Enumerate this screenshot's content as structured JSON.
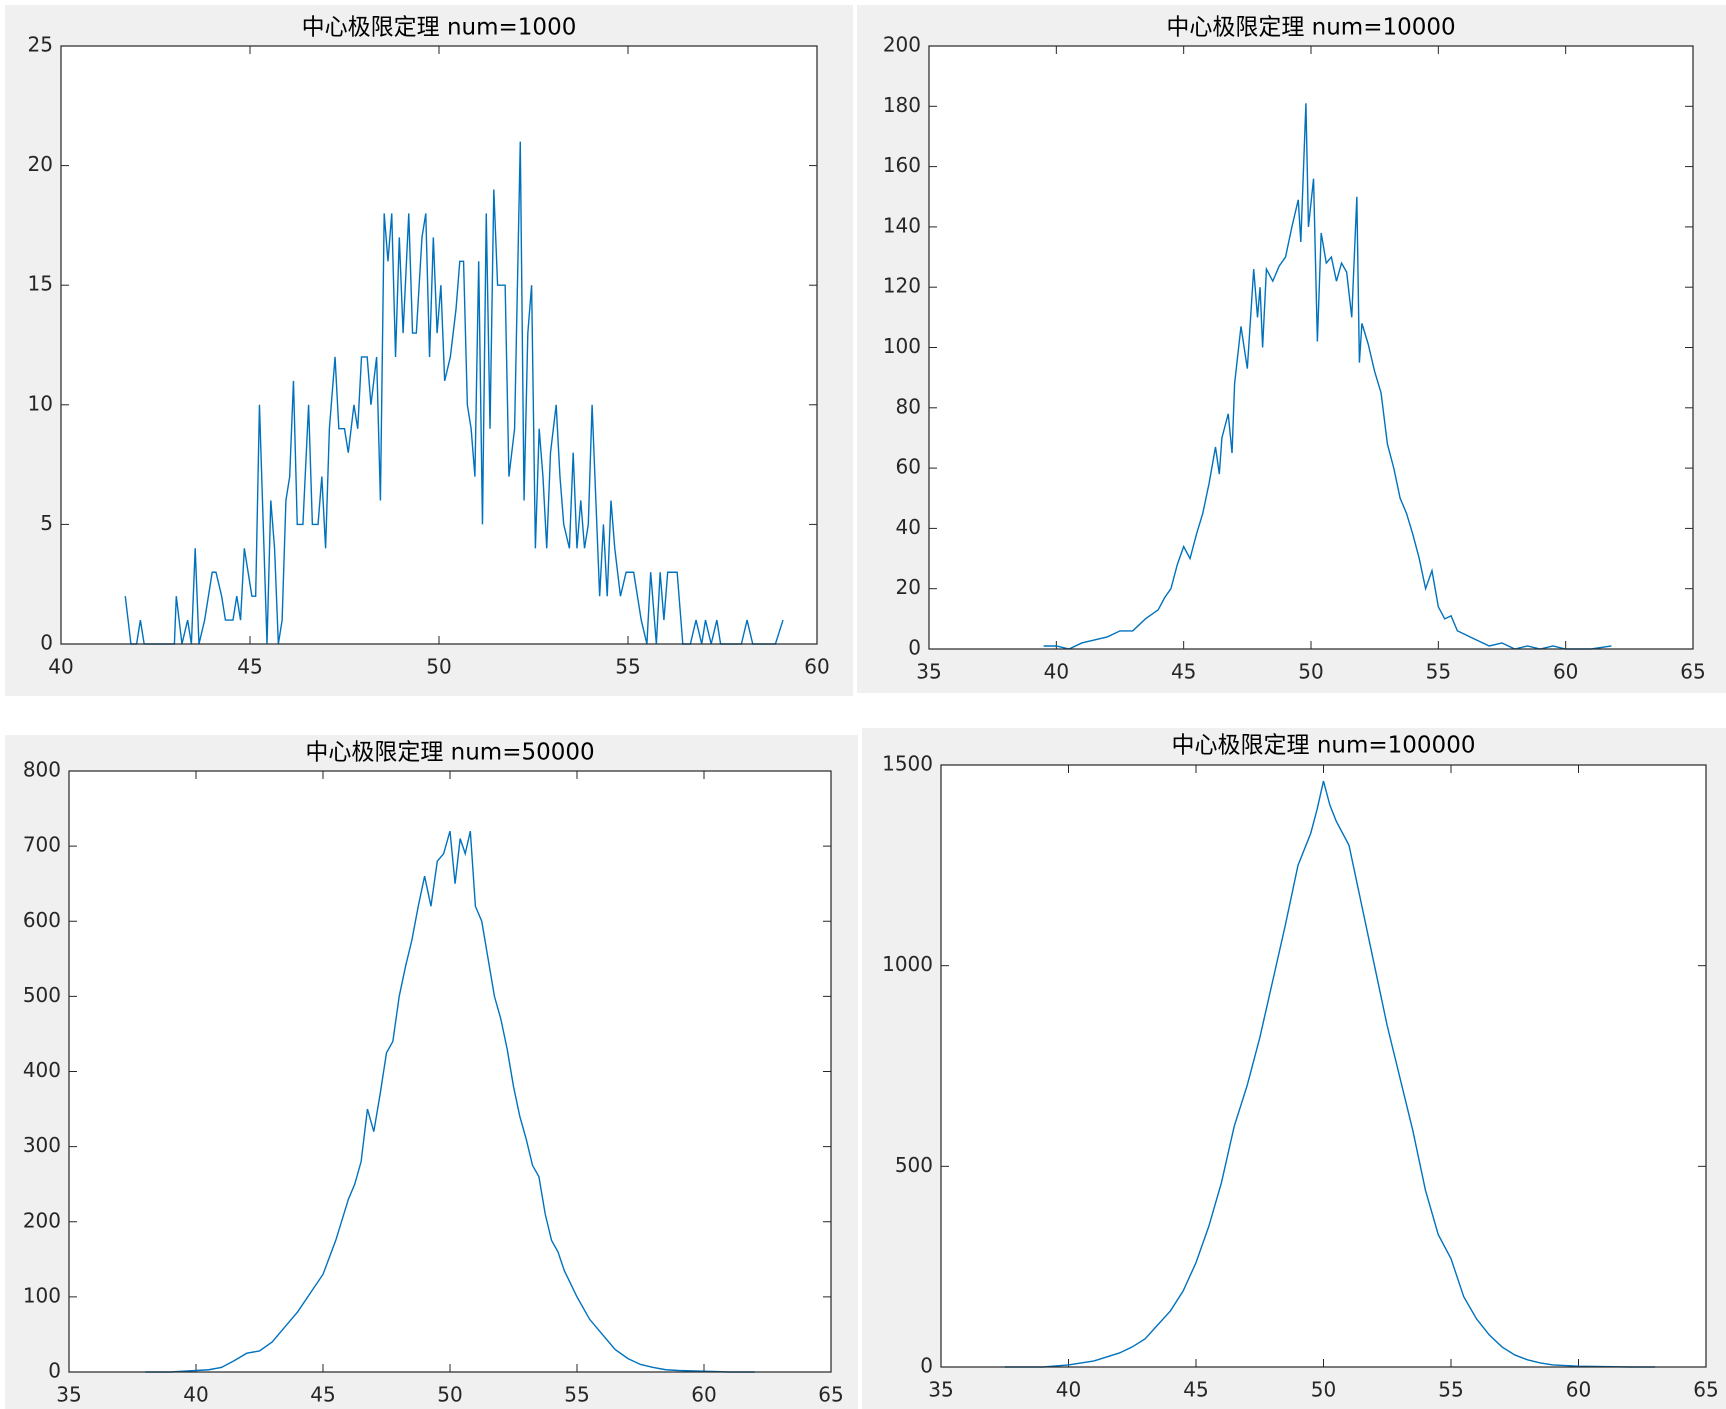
{
  "chart_data": [
    {
      "type": "line",
      "title": "中心极限定理 num=1000",
      "color": "#0072bd",
      "x": [
        41.7,
        41.85,
        42,
        42.1,
        42.2,
        43,
        43.05,
        43.2,
        43.35,
        43.45,
        43.55,
        43.65,
        43.8,
        44,
        44.1,
        44.25,
        44.35,
        44.55,
        44.65,
        44.75,
        44.85,
        44.95,
        45.05,
        45.15,
        45.25,
        45.35,
        45.45,
        45.55,
        45.65,
        45.75,
        45.85,
        45.95,
        46.05,
        46.15,
        46.25,
        46.4,
        46.55,
        46.65,
        46.8,
        46.9,
        47,
        47.1,
        47.25,
        47.35,
        47.5,
        47.6,
        47.75,
        47.85,
        47.95,
        48.1,
        48.2,
        48.35,
        48.45,
        48.55,
        48.65,
        48.75,
        48.85,
        48.95,
        49.05,
        49.2,
        49.3,
        49.4,
        49.55,
        49.65,
        49.75,
        49.85,
        49.95,
        50.05,
        50.15,
        50.3,
        50.45,
        50.55,
        50.65,
        50.75,
        50.85,
        50.95,
        51.05,
        51.15,
        51.25,
        51.35,
        51.45,
        51.55,
        51.75,
        51.85,
        52,
        52.15,
        52.25,
        52.35,
        52.45,
        52.55,
        52.65,
        52.75,
        52.85,
        52.95,
        53.1,
        53.2,
        53.3,
        53.45,
        53.55,
        53.65,
        53.75,
        53.85,
        53.95,
        54.05,
        54.15,
        54.25,
        54.35,
        54.45,
        54.55,
        54.65,
        54.8,
        54.95,
        55.15,
        55.35,
        55.5,
        55.6,
        55.75,
        55.85,
        55.95,
        56.05,
        56.3,
        56.45,
        56.65,
        56.8,
        56.95,
        57.05,
        57.2,
        57.35,
        57.45,
        58,
        58.15,
        58.3,
        58.9,
        59.1
      ],
      "values": [
        2,
        0,
        0,
        1,
        0,
        0,
        2,
        0,
        1,
        0,
        4,
        0,
        1,
        3,
        3,
        2,
        1,
        1,
        2,
        1,
        4,
        3,
        2,
        2,
        10,
        5,
        0,
        6,
        4,
        0,
        1,
        6,
        7,
        11,
        5,
        5,
        10,
        5,
        5,
        7,
        4,
        9,
        12,
        9,
        9,
        8,
        10,
        9,
        12,
        12,
        10,
        12,
        6,
        18,
        16,
        18,
        12,
        17,
        13,
        18,
        13,
        13,
        17,
        18,
        12,
        17,
        13,
        15,
        11,
        12,
        14,
        16,
        16,
        10,
        9,
        7,
        16,
        5,
        18,
        9,
        19,
        15,
        15,
        7,
        9,
        21,
        6,
        13,
        15,
        4,
        9,
        7,
        4,
        8,
        10,
        7,
        5,
        4,
        8,
        4,
        6,
        4,
        5,
        10,
        6,
        2,
        5,
        2,
        6,
        4,
        2,
        3,
        3,
        1,
        0,
        3,
        0,
        3,
        1,
        3,
        3,
        0,
        0,
        1,
        0,
        1,
        0,
        1,
        0,
        0,
        1,
        0,
        0,
        1
      ],
      "xlim": [
        40,
        60
      ],
      "xticks": [
        40,
        45,
        50,
        55,
        60
      ],
      "ylim": [
        0,
        25
      ],
      "yticks": [
        0,
        5,
        10,
        15,
        20,
        25
      ]
    },
    {
      "type": "line",
      "title": "中心极限定理 num=10000",
      "color": "#0072bd",
      "x": [
        39.5,
        40,
        40.5,
        41,
        41.5,
        42,
        42.5,
        43,
        43.5,
        44,
        44.25,
        44.5,
        44.75,
        45,
        45.25,
        45.5,
        45.75,
        46,
        46.25,
        46.4,
        46.5,
        46.75,
        46.9,
        47,
        47.25,
        47.5,
        47.75,
        47.9,
        48,
        48.1,
        48.25,
        48.5,
        48.75,
        49,
        49.25,
        49.5,
        49.6,
        49.8,
        49.9,
        50.1,
        50.25,
        50.4,
        50.6,
        50.8,
        51,
        51.2,
        51.4,
        51.6,
        51.8,
        51.9,
        52,
        52.25,
        52.5,
        52.75,
        53,
        53.25,
        53.5,
        53.75,
        54,
        54.25,
        54.5,
        54.75,
        55,
        55.25,
        55.5,
        55.75,
        56,
        56.5,
        57,
        57.5,
        58,
        58.5,
        59,
        59.5,
        60,
        61,
        61.8
      ],
      "values": [
        1,
        1,
        0,
        2,
        3,
        4,
        6,
        6,
        10,
        13,
        17,
        20,
        28,
        34,
        30,
        38,
        45,
        55,
        67,
        58,
        70,
        78,
        65,
        88,
        107,
        93,
        126,
        110,
        120,
        100,
        126,
        122,
        127,
        130,
        140,
        149,
        135,
        181,
        140,
        156,
        102,
        138,
        128,
        130,
        122,
        128,
        125,
        110,
        150,
        95,
        108,
        101,
        92,
        85,
        68,
        60,
        50,
        45,
        38,
        30,
        20,
        26,
        14,
        10,
        11,
        6,
        5,
        3,
        1,
        2,
        0,
        1,
        0,
        1,
        0,
        0,
        1
      ],
      "xlim": [
        35,
        65
      ],
      "xticks": [
        35,
        40,
        45,
        50,
        55,
        60,
        65
      ],
      "ylim": [
        0,
        200
      ],
      "yticks": [
        0,
        20,
        40,
        60,
        80,
        100,
        120,
        140,
        160,
        180,
        200
      ]
    },
    {
      "type": "line",
      "title": "中心极限定理 num=50000",
      "color": "#0072bd",
      "x": [
        38,
        39,
        40,
        40.5,
        41,
        41.5,
        42,
        42.5,
        43,
        43.5,
        44,
        44.5,
        45,
        45.5,
        46,
        46.25,
        46.5,
        46.75,
        47,
        47.25,
        47.5,
        47.75,
        48,
        48.25,
        48.5,
        48.75,
        49,
        49.25,
        49.5,
        49.75,
        50,
        50.2,
        50.4,
        50.6,
        50.8,
        51,
        51.25,
        51.5,
        51.75,
        52,
        52.25,
        52.5,
        52.75,
        53,
        53.25,
        53.5,
        53.75,
        54,
        54.25,
        54.5,
        55,
        55.5,
        56,
        56.5,
        57,
        57.5,
        58,
        58.5,
        59,
        60,
        61,
        62
      ],
      "values": [
        0,
        0,
        2,
        3,
        6,
        15,
        25,
        28,
        40,
        60,
        80,
        105,
        130,
        175,
        230,
        250,
        280,
        350,
        320,
        370,
        425,
        440,
        500,
        540,
        575,
        620,
        660,
        620,
        680,
        690,
        720,
        650,
        710,
        690,
        720,
        620,
        600,
        550,
        500,
        470,
        430,
        380,
        340,
        310,
        275,
        260,
        210,
        175,
        160,
        135,
        100,
        70,
        50,
        30,
        18,
        10,
        6,
        3,
        2,
        1,
        0,
        0
      ],
      "xlim": [
        35,
        65
      ],
      "xticks": [
        35,
        40,
        45,
        50,
        55,
        60,
        65
      ],
      "ylim": [
        0,
        800
      ],
      "yticks": [
        0,
        100,
        200,
        300,
        400,
        500,
        600,
        700,
        800
      ]
    },
    {
      "type": "line",
      "title": "中心极限定理 num=100000",
      "color": "#0072bd",
      "x": [
        37.5,
        39,
        40,
        40.5,
        41,
        41.5,
        42,
        42.5,
        43,
        43.5,
        44,
        44.5,
        45,
        45.5,
        46,
        46.5,
        47,
        47.5,
        48,
        48.5,
        49,
        49.5,
        49.75,
        50,
        50.25,
        50.5,
        51,
        51.5,
        52,
        52.5,
        53,
        53.5,
        54,
        54.5,
        55,
        55.5,
        56,
        56.5,
        57,
        57.5,
        58,
        58.5,
        59,
        60,
        61,
        62,
        63
      ],
      "values": [
        0,
        0,
        5,
        10,
        15,
        25,
        35,
        50,
        70,
        105,
        140,
        190,
        260,
        350,
        460,
        600,
        700,
        820,
        960,
        1100,
        1250,
        1330,
        1390,
        1460,
        1400,
        1360,
        1300,
        1150,
        1000,
        850,
        720,
        590,
        440,
        330,
        270,
        175,
        120,
        80,
        50,
        30,
        18,
        10,
        5,
        2,
        1,
        0,
        0
      ],
      "xlim": [
        35,
        65
      ],
      "xticks": [
        35,
        40,
        45,
        50,
        55,
        60,
        65
      ],
      "ylim": [
        0,
        1500
      ],
      "yticks": [
        0,
        500,
        1000,
        1500
      ]
    }
  ]
}
